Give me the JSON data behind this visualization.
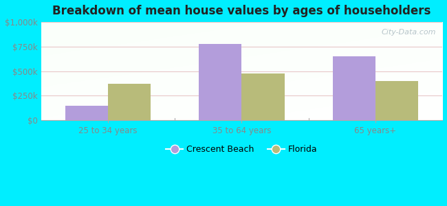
{
  "title": "Breakdown of mean house values by ages of householders",
  "categories": [
    "25 to 34 years",
    "35 to 64 years",
    "65 years+"
  ],
  "crescent_beach": [
    150000,
    775000,
    650000
  ],
  "florida": [
    375000,
    475000,
    400000
  ],
  "crescent_beach_color": "#b39ddb",
  "florida_color": "#b8bb7a",
  "background_outer": "#00eeff",
  "ylim": [
    0,
    1000000
  ],
  "yticks": [
    0,
    250000,
    500000,
    750000,
    1000000
  ],
  "ytick_labels": [
    "$0",
    "$250k",
    "$500k",
    "$750k",
    "$1,000k"
  ],
  "legend_labels": [
    "Crescent Beach",
    "Florida"
  ],
  "bar_width": 0.32,
  "watermark": "City-Data.com",
  "grid_color": "#e8c8c8",
  "tick_color": "#888888"
}
